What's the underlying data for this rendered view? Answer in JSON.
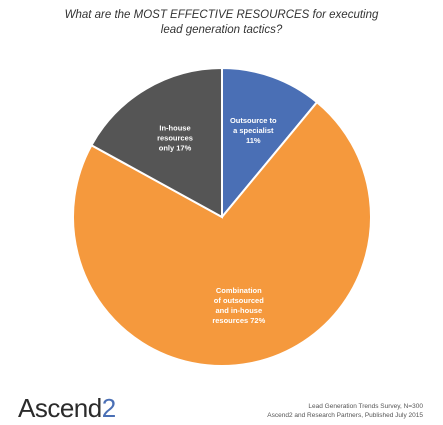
{
  "title": {
    "line1": "What are the MOST EFFECTIVE RESOURCES for executing",
    "line2": "lead generation tactics?"
  },
  "chart_data": {
    "type": "pie",
    "start": "top, clockwise",
    "slices": [
      {
        "label_lines": [
          "Outsource to",
          "a specialist",
          "11%"
        ],
        "value": 11,
        "color": "#4a6fb5"
      },
      {
        "label_lines": [
          "Combination",
          "of outsourced",
          "and in-house",
          "resources 72%"
        ],
        "value": 72,
        "color": "#f5993d"
      },
      {
        "label_lines": [
          "In-house",
          "resources",
          "only 17%"
        ],
        "value": 17,
        "color": "#555555"
      }
    ]
  },
  "footer": {
    "logo_main": "Ascend",
    "logo_suffix": "2",
    "source_line1": "Lead Generation Trends Survey, N=300",
    "source_line2": "Ascend2 and Research Partners, Published July 2015"
  }
}
